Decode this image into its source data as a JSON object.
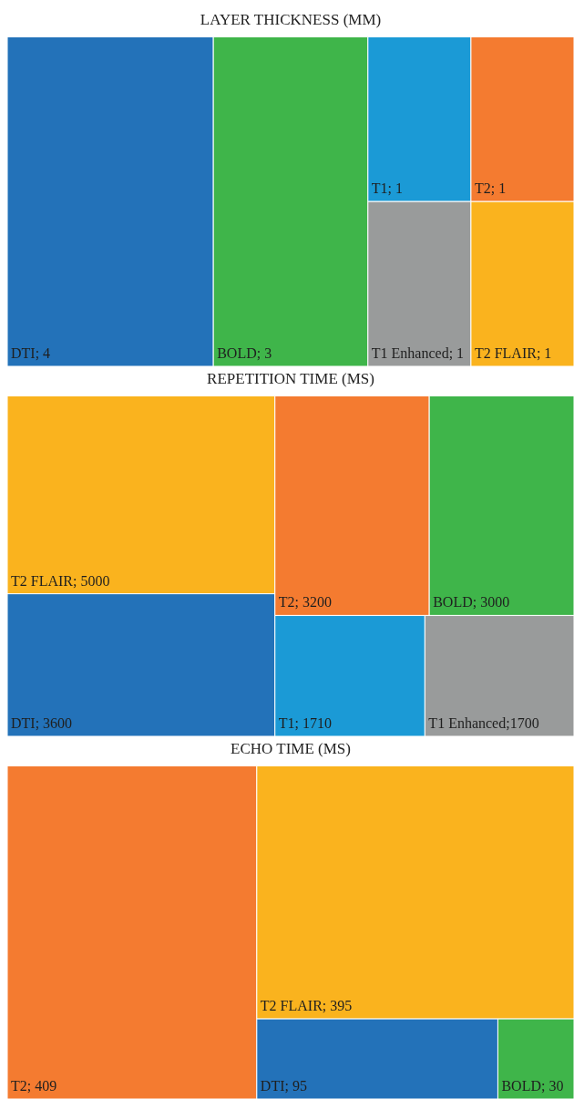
{
  "chart_data": [
    {
      "type": "other",
      "title": "LAYER THICKNESS (MM)",
      "categories": [
        "DTI",
        "BOLD",
        "T1",
        "T2",
        "T1 Enhanced",
        "T2 FLAIR"
      ],
      "values": [
        4,
        3,
        1,
        1,
        1,
        1
      ],
      "colors": [
        "#2372b9",
        "#3fb54a",
        "#1b9ad6",
        "#f47b30",
        "#999b9b",
        "#fab31e"
      ],
      "value_labels": [
        "; 4",
        "; 3",
        "; 1",
        "; 1",
        "; 1",
        "; 1"
      ]
    },
    {
      "type": "other",
      "title": "REPETITION TIME (MS)",
      "categories": [
        "T2 FLAIR",
        "DTI",
        "T2",
        "BOLD",
        "T1",
        "T1 Enhanced"
      ],
      "values": [
        5000,
        3600,
        3200,
        3000,
        1710,
        1700
      ],
      "colors": [
        "#fab31e",
        "#2372b9",
        "#f47b30",
        "#3fb54a",
        "#1b9ad6",
        "#999b9b"
      ],
      "value_labels": [
        "; 5000",
        "; 3600",
        "; 3200",
        "; 3000",
        "; 1710",
        ";1700"
      ]
    },
    {
      "type": "other",
      "title": "ECHO TIME (MS)",
      "categories": [
        "T2",
        "T2 FLAIR",
        "DTI",
        "BOLD"
      ],
      "values": [
        409,
        395,
        95,
        30
      ],
      "colors": [
        "#f47b30",
        "#fab31e",
        "#2372b9",
        "#3fb54a"
      ],
      "value_labels": [
        "; 409",
        "; 395",
        "; 95",
        "; 30"
      ]
    }
  ]
}
